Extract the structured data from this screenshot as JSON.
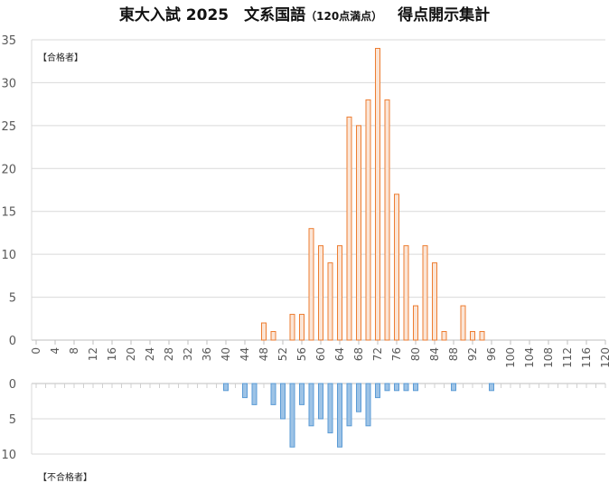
{
  "chart_data": {
    "type": "bar",
    "title_main": "東大入試 2025　文系国語",
    "title_sub": "（120点満点）",
    "title_tail": "得点開示集計",
    "upper_label": "【合格者】",
    "lower_label": "【不合格者】",
    "x_ticks": [
      "0",
      "4",
      "8",
      "12",
      "16",
      "20",
      "24",
      "28",
      "32",
      "36",
      "40",
      "44",
      "48",
      "52",
      "56",
      "60",
      "64",
      "68",
      "72",
      "76",
      "80",
      "84",
      "88",
      "92",
      "96",
      "100",
      "104",
      "108",
      "112",
      "116",
      "120"
    ],
    "upper_y_ticks": [
      "0",
      "5",
      "10",
      "15",
      "20",
      "25",
      "30",
      "35"
    ],
    "lower_y_ticks": [
      "0",
      "5",
      "10"
    ],
    "upper_ylim": [
      0,
      35
    ],
    "lower_ylim": [
      0,
      10
    ],
    "series": [
      {
        "name": "合格者",
        "color": "#F4B183",
        "points": [
          {
            "x": 48,
            "y": 2
          },
          {
            "x": 50,
            "y": 1
          },
          {
            "x": 54,
            "y": 3
          },
          {
            "x": 56,
            "y": 3
          },
          {
            "x": 58,
            "y": 13
          },
          {
            "x": 60,
            "y": 11
          },
          {
            "x": 62,
            "y": 9
          },
          {
            "x": 64,
            "y": 11
          },
          {
            "x": 66,
            "y": 26
          },
          {
            "x": 68,
            "y": 25
          },
          {
            "x": 70,
            "y": 28
          },
          {
            "x": 72,
            "y": 34
          },
          {
            "x": 74,
            "y": 28
          },
          {
            "x": 76,
            "y": 17
          },
          {
            "x": 78,
            "y": 11
          },
          {
            "x": 80,
            "y": 4
          },
          {
            "x": 82,
            "y": 11
          },
          {
            "x": 84,
            "y": 9
          },
          {
            "x": 86,
            "y": 1
          },
          {
            "x": 90,
            "y": 4
          },
          {
            "x": 92,
            "y": 1
          },
          {
            "x": 94,
            "y": 1
          }
        ]
      },
      {
        "name": "不合格者",
        "color": "#9DC3E6",
        "points": [
          {
            "x": 40,
            "y": 1
          },
          {
            "x": 44,
            "y": 2
          },
          {
            "x": 46,
            "y": 3
          },
          {
            "x": 50,
            "y": 3
          },
          {
            "x": 52,
            "y": 5
          },
          {
            "x": 54,
            "y": 9
          },
          {
            "x": 56,
            "y": 3
          },
          {
            "x": 58,
            "y": 6
          },
          {
            "x": 60,
            "y": 5
          },
          {
            "x": 62,
            "y": 7
          },
          {
            "x": 64,
            "y": 9
          },
          {
            "x": 66,
            "y": 6
          },
          {
            "x": 68,
            "y": 4
          },
          {
            "x": 70,
            "y": 6
          },
          {
            "x": 72,
            "y": 2
          },
          {
            "x": 74,
            "y": 1
          },
          {
            "x": 76,
            "y": 1
          },
          {
            "x": 78,
            "y": 1
          },
          {
            "x": 80,
            "y": 1
          },
          {
            "x": 88,
            "y": 1
          },
          {
            "x": 96,
            "y": 1
          }
        ]
      }
    ]
  }
}
